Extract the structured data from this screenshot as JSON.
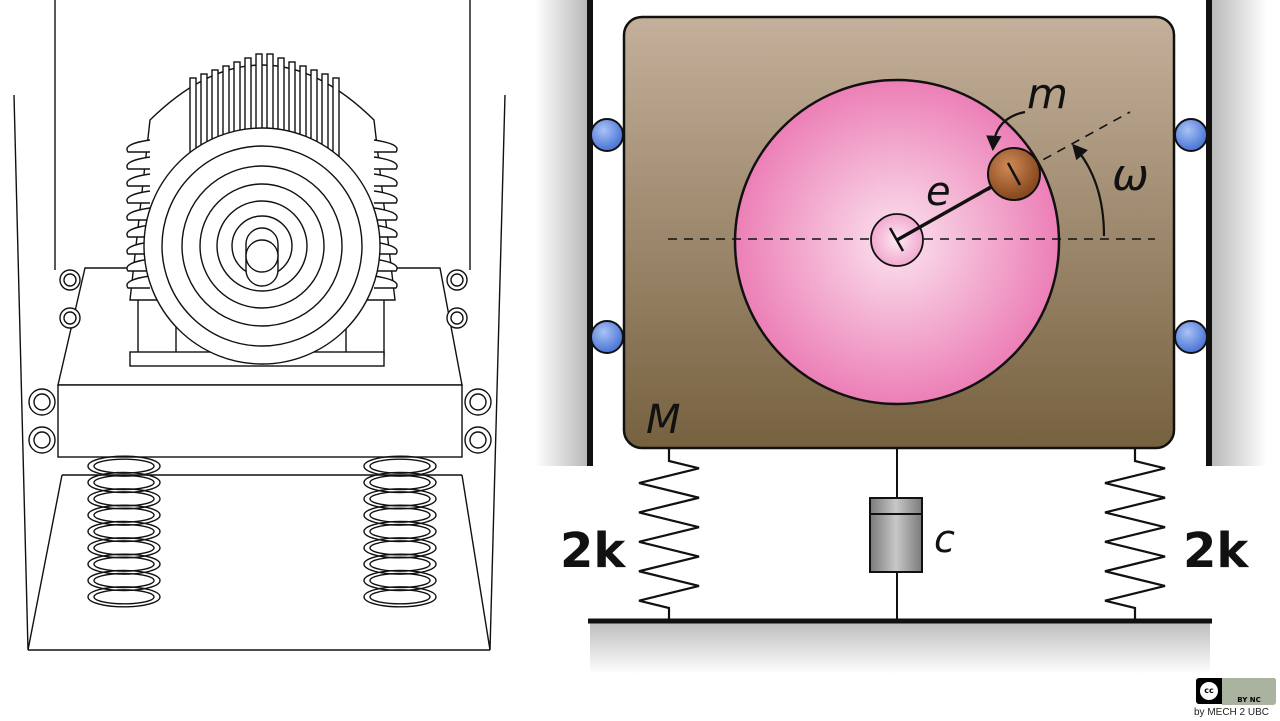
{
  "labels": {
    "mass_large": "M",
    "mass_small": "m",
    "eccentricity": "e",
    "angular_velocity": "ω",
    "spring_left": "2k",
    "spring_right": "2k",
    "damper": "c"
  },
  "license": {
    "badge_cc": "cc",
    "badge_terms": "BY NC",
    "credit": "by MECH 2 UBC"
  },
  "colors": {
    "block_top": "#c4b09b",
    "block_bottom": "#76613f",
    "disk": "#f08cc0",
    "disk_center": "#f9d9ea",
    "small_mass": "#a05a2c",
    "roller": "#6f95e6",
    "damper": "#9a9a9a"
  }
}
